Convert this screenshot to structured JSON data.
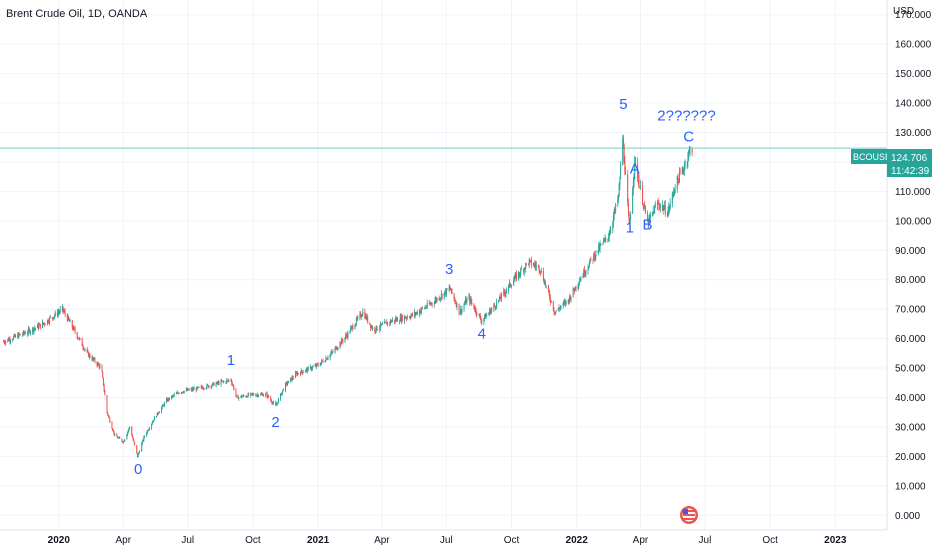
{
  "header": {
    "title": "Brent Crude Oil, 1D, OANDA"
  },
  "axis": {
    "currency": "USD"
  },
  "price_badge": {
    "symbol": "BCOUSD",
    "price": "124.706",
    "countdown": "11:42:39",
    "color": "#26a69a"
  },
  "event_icon": "us-flag-event-icon",
  "colors": {
    "up": "#26a69a",
    "down": "#ef5350",
    "wave_label": "#2962ff",
    "grid": "#f0f3fa"
  },
  "chart_data": {
    "type": "candlestick",
    "title": "Brent Crude Oil, 1D, OANDA",
    "ylabel": "USD",
    "ylim": [
      -5,
      175
    ],
    "y_ticks": [
      "0.000",
      "10.000",
      "20.000",
      "30.000",
      "40.000",
      "50.000",
      "60.000",
      "70.000",
      "80.000",
      "90.000",
      "100.000",
      "110.000",
      "120.000",
      "130.000",
      "140.000",
      "150.000",
      "160.000",
      "170.000"
    ],
    "y_tick_values": [
      0,
      10,
      20,
      30,
      40,
      50,
      60,
      70,
      80,
      90,
      100,
      110,
      120,
      130,
      140,
      150,
      160,
      170
    ],
    "x_ticks": [
      {
        "label": "2020",
        "date": "2020-01-01",
        "bold": true
      },
      {
        "label": "Apr",
        "date": "2020-04-01",
        "bold": false
      },
      {
        "label": "Jul",
        "date": "2020-07-01",
        "bold": false
      },
      {
        "label": "Oct",
        "date": "2020-10-01",
        "bold": false
      },
      {
        "label": "2021",
        "date": "2021-01-01",
        "bold": true
      },
      {
        "label": "Apr",
        "date": "2021-04-01",
        "bold": false
      },
      {
        "label": "Jul",
        "date": "2021-07-01",
        "bold": false
      },
      {
        "label": "Oct",
        "date": "2021-10-01",
        "bold": false
      },
      {
        "label": "2022",
        "date": "2022-01-01",
        "bold": true
      },
      {
        "label": "Apr",
        "date": "2022-04-01",
        "bold": false
      },
      {
        "label": "Jul",
        "date": "2022-07-01",
        "bold": false
      },
      {
        "label": "Oct",
        "date": "2022-10-01",
        "bold": false
      },
      {
        "label": "2023",
        "date": "2023-01-01",
        "bold": true
      }
    ],
    "xlim": [
      "2019-10-10",
      "2023-03-15"
    ],
    "current_price": 124.706,
    "price_path": [
      [
        "2019-10-15",
        59
      ],
      [
        "2019-11-15",
        62
      ],
      [
        "2019-12-10",
        65
      ],
      [
        "2020-01-06",
        70
      ],
      [
        "2020-01-20",
        64
      ],
      [
        "2020-02-10",
        55
      ],
      [
        "2020-03-01",
        50
      ],
      [
        "2020-03-09",
        35
      ],
      [
        "2020-03-20",
        27
      ],
      [
        "2020-04-01",
        25
      ],
      [
        "2020-04-10",
        30
      ],
      [
        "2020-04-21",
        20
      ],
      [
        "2020-05-01",
        27
      ],
      [
        "2020-05-15",
        33
      ],
      [
        "2020-06-01",
        39
      ],
      [
        "2020-06-20",
        42
      ],
      [
        "2020-07-15",
        43
      ],
      [
        "2020-08-15",
        45
      ],
      [
        "2020-08-31",
        46
      ],
      [
        "2020-09-08",
        40
      ],
      [
        "2020-10-01",
        41
      ],
      [
        "2020-10-20",
        41
      ],
      [
        "2020-11-02",
        37
      ],
      [
        "2020-11-15",
        44
      ],
      [
        "2020-12-01",
        48
      ],
      [
        "2021-01-01",
        51
      ],
      [
        "2021-01-20",
        55
      ],
      [
        "2021-02-10",
        61
      ],
      [
        "2021-03-05",
        69
      ],
      [
        "2021-03-20",
        63
      ],
      [
        "2021-04-15",
        66
      ],
      [
        "2021-05-15",
        68
      ],
      [
        "2021-06-10",
        72
      ],
      [
        "2021-07-06",
        77
      ],
      [
        "2021-07-20",
        69
      ],
      [
        "2021-08-01",
        74
      ],
      [
        "2021-08-20",
        66
      ],
      [
        "2021-09-10",
        72
      ],
      [
        "2021-10-01",
        79
      ],
      [
        "2021-10-25",
        86
      ],
      [
        "2021-11-10",
        84
      ],
      [
        "2021-12-01",
        69
      ],
      [
        "2021-12-20",
        73
      ],
      [
        "2022-01-05",
        80
      ],
      [
        "2022-01-25",
        88
      ],
      [
        "2022-02-15",
        95
      ],
      [
        "2022-03-01",
        108
      ],
      [
        "2022-03-07",
        128
      ],
      [
        "2022-03-16",
        98
      ],
      [
        "2022-03-24",
        120
      ],
      [
        "2022-04-11",
        99
      ],
      [
        "2022-04-25",
        106
      ],
      [
        "2022-05-10",
        103
      ],
      [
        "2022-05-20",
        112
      ],
      [
        "2022-06-01",
        118
      ],
      [
        "2022-06-08",
        123
      ],
      [
        "2022-06-13",
        124.7
      ]
    ],
    "wave_labels": [
      {
        "text": "0",
        "date": "2020-04-22",
        "price": 14
      },
      {
        "text": "1",
        "date": "2020-08-31",
        "price": 51
      },
      {
        "text": "2",
        "date": "2020-11-02",
        "price": 30
      },
      {
        "text": "3",
        "date": "2021-07-05",
        "price": 82
      },
      {
        "text": "4",
        "date": "2021-08-20",
        "price": 60
      },
      {
        "text": "5",
        "date": "2022-03-08",
        "price": 138
      },
      {
        "text": "1",
        "date": "2022-03-17",
        "price": 96
      },
      {
        "text": "A",
        "date": "2022-03-24",
        "price": 116
      },
      {
        "text": "B",
        "date": "2022-04-11",
        "price": 97
      },
      {
        "text": "C",
        "date": "2022-06-08",
        "price": 127
      },
      {
        "text": "2??????",
        "date": "2022-06-05",
        "price": 134
      }
    ]
  }
}
